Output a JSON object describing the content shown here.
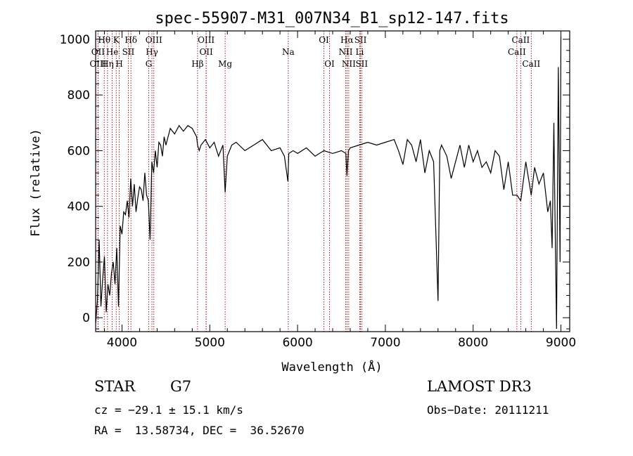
{
  "chart_data": {
    "type": "line",
    "title": "spec-55907-M31_007N34_B1_sp12-147.fits",
    "xlabel": "Wavelength (Å)",
    "ylabel": "Flux (relative)",
    "xlim": [
      3700,
      9100
    ],
    "ylim": [
      -50,
      1030
    ],
    "xticks": [
      "4000",
      "5000",
      "6000",
      "7000",
      "8000",
      "9000"
    ],
    "yticks": [
      "0",
      "200",
      "400",
      "600",
      "800",
      "1000"
    ],
    "spectrum": {
      "x": [
        3700,
        3720,
        3740,
        3760,
        3780,
        3800,
        3820,
        3840,
        3860,
        3880,
        3900,
        3920,
        3940,
        3960,
        3980,
        4000,
        4020,
        4040,
        4060,
        4080,
        4100,
        4120,
        4140,
        4160,
        4180,
        4200,
        4220,
        4240,
        4260,
        4280,
        4300,
        4320,
        4340,
        4360,
        4380,
        4400,
        4420,
        4440,
        4460,
        4480,
        4500,
        4550,
        4600,
        4650,
        4700,
        4750,
        4800,
        4850,
        4861,
        4880,
        4900,
        4950,
        5000,
        5050,
        5100,
        5150,
        5175,
        5200,
        5250,
        5300,
        5400,
        5500,
        5600,
        5700,
        5800,
        5850,
        5890,
        5900,
        5950,
        6000,
        6100,
        6200,
        6300,
        6400,
        6500,
        6550,
        6563,
        6580,
        6600,
        6700,
        6800,
        6900,
        7000,
        7100,
        7150,
        7200,
        7250,
        7300,
        7350,
        7400,
        7450,
        7500,
        7550,
        7600,
        7620,
        7640,
        7700,
        7750,
        7800,
        7850,
        7900,
        7950,
        8000,
        8050,
        8100,
        8150,
        8200,
        8250,
        8300,
        8350,
        8400,
        8450,
        8500,
        8542,
        8600,
        8662,
        8700,
        8750,
        8800,
        8850,
        8880,
        8900,
        8920,
        8930,
        8950,
        8970,
        8990,
        9000
      ],
      "y": [
        -20,
        60,
        280,
        40,
        140,
        220,
        20,
        120,
        80,
        160,
        200,
        120,
        250,
        40,
        330,
        300,
        380,
        370,
        420,
        360,
        500,
        400,
        480,
        380,
        430,
        470,
        460,
        420,
        520,
        440,
        420,
        280,
        560,
        520,
        600,
        540,
        630,
        620,
        580,
        650,
        620,
        680,
        660,
        690,
        670,
        690,
        680,
        650,
        620,
        600,
        620,
        640,
        610,
        630,
        580,
        620,
        450,
        580,
        620,
        630,
        600,
        620,
        640,
        600,
        610,
        580,
        490,
        590,
        600,
        590,
        610,
        580,
        600,
        590,
        600,
        590,
        510,
        600,
        610,
        620,
        630,
        620,
        630,
        640,
        600,
        550,
        640,
        620,
        560,
        640,
        520,
        600,
        560,
        60,
        600,
        620,
        580,
        500,
        560,
        620,
        540,
        620,
        560,
        600,
        540,
        560,
        520,
        600,
        580,
        460,
        560,
        440,
        440,
        420,
        560,
        440,
        540,
        480,
        520,
        380,
        420,
        250,
        700,
        420,
        -40,
        900,
        200,
        1010
      ]
    },
    "lines": [
      {
        "name": "Hθ",
        "x": 3798,
        "row": 1
      },
      {
        "name": "OII",
        "x": 3727,
        "row": 2
      },
      {
        "name": "OIII",
        "x": 3727,
        "row": 3
      },
      {
        "name": "K",
        "x": 3934,
        "row": 1
      },
      {
        "name": "He",
        "x": 3889,
        "row": 2
      },
      {
        "name": "Hη",
        "x": 3835,
        "row": 3
      },
      {
        "name": "H",
        "x": 3969,
        "row": 3
      },
      {
        "name": "Hδ",
        "x": 4102,
        "row": 1
      },
      {
        "name": "SII",
        "x": 4072,
        "row": 2
      },
      {
        "name": "OIII",
        "x": 4363,
        "row": 1
      },
      {
        "name": "Hγ",
        "x": 4341,
        "row": 2
      },
      {
        "name": "G",
        "x": 4305,
        "row": 3
      },
      {
        "name": "OIII",
        "x": 4959,
        "row": 1
      },
      {
        "name": "OII",
        "x": 4959,
        "row": 2
      },
      {
        "name": "Hβ",
        "x": 4861,
        "row": 3
      },
      {
        "name": "Mg",
        "x": 5175,
        "row": 3
      },
      {
        "name": "Na",
        "x": 5894,
        "row": 2
      },
      {
        "name": "OI",
        "x": 6300,
        "row": 1
      },
      {
        "name": "OI",
        "x": 6364,
        "row": 3
      },
      {
        "name": "Hα",
        "x": 6563,
        "row": 1
      },
      {
        "name": "SII",
        "x": 6717,
        "row": 1
      },
      {
        "name": "NII",
        "x": 6548,
        "row": 2
      },
      {
        "name": "Li",
        "x": 6708,
        "row": 2
      },
      {
        "name": "NII",
        "x": 6583,
        "row": 3
      },
      {
        "name": "SII",
        "x": 6731,
        "row": 3
      },
      {
        "name": "CaII",
        "x": 8542,
        "row": 1
      },
      {
        "name": "CaII",
        "x": 8498,
        "row": 2
      },
      {
        "name": "CaII",
        "x": 8662,
        "row": 3
      }
    ],
    "line_color": "#a00000",
    "spectrum_color": "#000000"
  },
  "info": {
    "class": "STAR",
    "subclass": "G7",
    "survey": "LAMOST DR3",
    "cz": "cz = −29.1 ± 15.1 km/s",
    "obs_date": "Obs−Date: 20111211",
    "radec": "RA =  13.58734, DEC =  36.52670"
  }
}
